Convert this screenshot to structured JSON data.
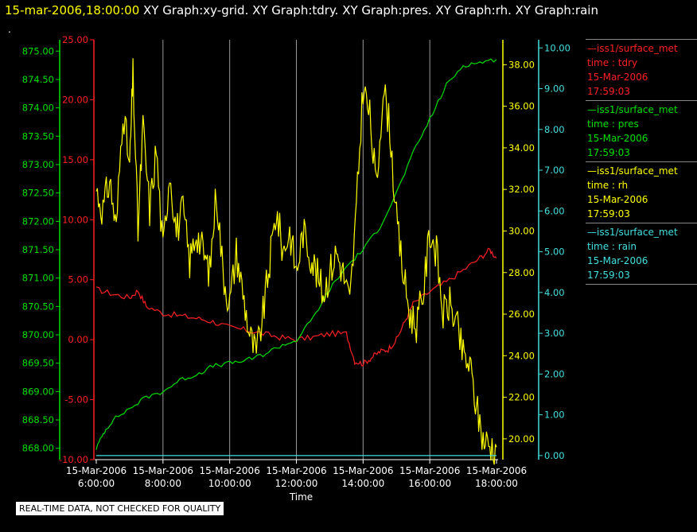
{
  "header": {
    "datetime": "15-mar-2006,18:00:00",
    "graphs": "XY Graph:xy-grid.  XY Graph:tdry.  XY Graph:pres.  XY Graph:rh.  XY Graph:rain",
    "dot": "."
  },
  "footer": {
    "quality_note": "REAL-TIME DATA, NOT CHECKED FOR QUALITY"
  },
  "colors": {
    "tdry": "#ff2020",
    "pres": "#00e000",
    "rh": "#ffff00",
    "rain": "#40e0e0",
    "grid": "#9a9a9a"
  },
  "legend": [
    {
      "dash": "—",
      "source": "iss1/surface_met",
      "var": "time : tdry",
      "date": "15-Mar-2006",
      "time": "17:59:03"
    },
    {
      "dash": "—",
      "source": "iss1/surface_met",
      "var": "time : pres",
      "date": "15-Mar-2006",
      "time": "17:59:03"
    },
    {
      "dash": "—",
      "source": "iss1/surface_met",
      "var": "time : rh",
      "date": "15-Mar-2006",
      "time": "17:59:03"
    },
    {
      "dash": "—",
      "source": "iss1/surface_met",
      "var": "time : rain",
      "date": "15-Mar-2006",
      "time": "17:59:03"
    }
  ],
  "chart_data": {
    "type": "line",
    "xlabel": "Time",
    "x_ticks": [
      {
        "date": "15-Mar-2006",
        "time": "6:00:00"
      },
      {
        "date": "15-Mar-2006",
        "time": "8:00:00"
      },
      {
        "date": "15-Mar-2006",
        "time": "10:00:00"
      },
      {
        "date": "15-Mar-2006",
        "time": "12:00:00"
      },
      {
        "date": "15-Mar-2006",
        "time": "14:00:00"
      },
      {
        "date": "15-Mar-2006",
        "time": "16:00:00"
      },
      {
        "date": "15-Mar-2006",
        "time": "18:00:00"
      }
    ],
    "xlim_hours": [
      6,
      18
    ],
    "grid": true,
    "legend": "right",
    "axes": {
      "tdry": {
        "ylim": [
          -10,
          25
        ],
        "ticks": [
          "-10.00",
          "-5.00",
          "0.00",
          "5.00",
          "10.00",
          "15.00",
          "20.00",
          "25.00"
        ]
      },
      "pres": {
        "ylim": [
          867.8,
          875.2
        ],
        "ticks": [
          "868.00",
          "868.50",
          "869.00",
          "869.50",
          "870.00",
          "870.50",
          "871.00",
          "871.50",
          "872.00",
          "872.50",
          "873.00",
          "873.50",
          "874.00",
          "874.50",
          "875.00"
        ]
      },
      "rh": {
        "ylim": [
          19.0,
          39.2
        ],
        "ticks": [
          "20.00",
          "22.00",
          "24.00",
          "26.00",
          "28.00",
          "30.00",
          "32.00",
          "34.00",
          "36.00",
          "38.00"
        ]
      },
      "rain": {
        "ylim": [
          -0.1,
          10.2
        ],
        "ticks": [
          "0.00",
          "1.00",
          "2.00",
          "3.00",
          "4.00",
          "5.00",
          "6.00",
          "7.00",
          "8.00",
          "9.00",
          "10.00"
        ]
      }
    },
    "series": [
      {
        "key": "tdry",
        "x": [
          6.0,
          6.5,
          7.0,
          7.25,
          7.5,
          8.0,
          8.5,
          9.0,
          9.5,
          10.0,
          10.5,
          11.0,
          11.5,
          12.0,
          12.5,
          13.0,
          13.5,
          13.75,
          14.0,
          14.25,
          14.5,
          14.75,
          15.0,
          15.25,
          15.5,
          16.0,
          16.5,
          17.0,
          17.5,
          17.8,
          18.0
        ],
        "y": [
          4.2,
          3.8,
          3.5,
          4.1,
          2.8,
          2.2,
          2.0,
          1.8,
          1.5,
          1.0,
          0.8,
          0.5,
          0.2,
          0.0,
          0.2,
          0.5,
          0.5,
          -1.8,
          -2.0,
          -1.5,
          -1.0,
          -0.8,
          0.0,
          1.5,
          3.0,
          4.0,
          4.8,
          5.8,
          6.8,
          7.5,
          6.8
        ]
      },
      {
        "key": "pres",
        "x": [
          6.0,
          6.25,
          6.5,
          7.0,
          7.5,
          8.0,
          8.5,
          9.0,
          9.5,
          10.0,
          10.5,
          11.0,
          11.5,
          12.0,
          12.5,
          13.0,
          13.5,
          14.0,
          14.5,
          15.0,
          15.5,
          16.0,
          16.5,
          17.0,
          17.5,
          18.0
        ],
        "y": [
          868.0,
          868.3,
          868.5,
          868.7,
          868.9,
          869.0,
          869.2,
          869.3,
          869.45,
          869.5,
          869.55,
          869.65,
          869.8,
          869.9,
          870.3,
          870.8,
          871.2,
          871.5,
          871.9,
          872.5,
          873.2,
          873.8,
          874.4,
          874.75,
          874.8,
          874.85
        ]
      },
      {
        "key": "rh",
        "x": [
          6.0,
          6.2,
          6.4,
          6.6,
          6.8,
          7.0,
          7.1,
          7.25,
          7.4,
          7.6,
          7.8,
          8.0,
          8.2,
          8.4,
          8.6,
          8.8,
          9.0,
          9.2,
          9.4,
          9.6,
          9.8,
          10.0,
          10.2,
          10.4,
          10.6,
          10.8,
          11.0,
          11.2,
          11.4,
          11.6,
          11.8,
          12.0,
          12.2,
          12.4,
          12.6,
          12.8,
          13.0,
          13.2,
          13.4,
          13.6,
          13.8,
          14.0,
          14.2,
          14.4,
          14.6,
          14.8,
          15.0,
          15.2,
          15.4,
          15.6,
          15.8,
          16.0,
          16.2,
          16.4,
          16.6,
          16.8,
          17.0,
          17.2,
          17.4,
          17.6,
          17.8,
          18.0
        ],
        "y": [
          32.0,
          31.0,
          32.5,
          30.0,
          36.0,
          33.0,
          37.5,
          30.0,
          35.0,
          31.0,
          34.0,
          29.0,
          33.0,
          30.0,
          31.0,
          28.5,
          30.0,
          29.0,
          28.0,
          32.0,
          28.0,
          26.5,
          29.0,
          27.0,
          25.0,
          24.0,
          26.0,
          28.5,
          31.0,
          29.0,
          30.0,
          28.0,
          30.0,
          29.0,
          28.0,
          27.0,
          28.0,
          29.0,
          28.0,
          26.5,
          31.0,
          37.0,
          35.5,
          32.0,
          37.0,
          35.0,
          30.5,
          28.0,
          26.0,
          25.5,
          27.0,
          30.0,
          29.0,
          26.0,
          26.5,
          25.5,
          24.0,
          23.5,
          21.5,
          20.0,
          19.7,
          19.6
        ]
      },
      {
        "key": "rain",
        "x": [
          6.0,
          18.0
        ],
        "y": [
          0.0,
          0.0
        ]
      }
    ]
  }
}
